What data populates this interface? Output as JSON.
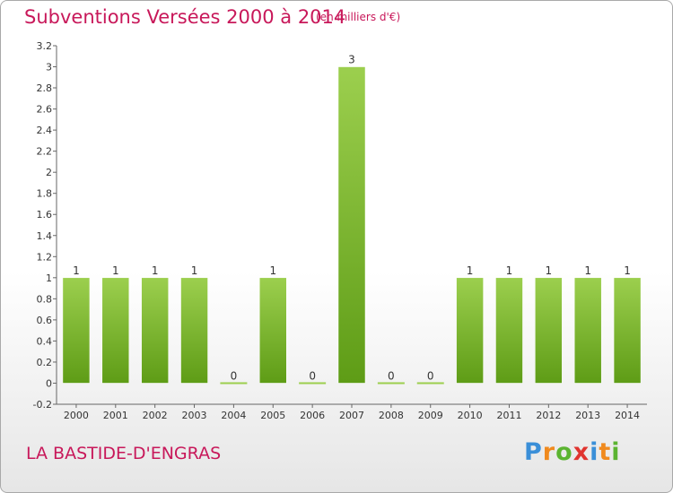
{
  "header": {
    "title": "Subventions Versées 2000 à 2014",
    "unit": "(en milliers d'€)"
  },
  "footer": {
    "commune": "LA BASTIDE-D'ENGRAS",
    "logo_letters": [
      "P",
      "r",
      "o",
      "x",
      "i",
      "t",
      "i"
    ],
    "logo_colors": [
      "#3a8fd8",
      "#f08a1e",
      "#5bb431",
      "#e0342f",
      "#3a8fd8",
      "#f08a1e",
      "#5bb431"
    ]
  },
  "chart_data": {
    "type": "bar",
    "title": "Subventions Versées 2000 à 2014",
    "xlabel": "",
    "ylabel": "",
    "categories": [
      "2000",
      "2001",
      "2002",
      "2003",
      "2004",
      "2005",
      "2006",
      "2007",
      "2008",
      "2009",
      "2010",
      "2011",
      "2012",
      "2013",
      "2014"
    ],
    "values": [
      1,
      1,
      1,
      1,
      0,
      1,
      0,
      3,
      0,
      0,
      1,
      1,
      1,
      1,
      1
    ],
    "data_labels": [
      "1",
      "1",
      "1",
      "1",
      "0",
      "1",
      "0",
      "3",
      "0",
      "0",
      "1",
      "1",
      "1",
      "1",
      "1"
    ],
    "ylim": [
      -0.2,
      3.2
    ],
    "yticks": [
      -0.2,
      0,
      0.2,
      0.4,
      0.6,
      0.8,
      1,
      1.2,
      1.4,
      1.6,
      1.8,
      2,
      2.2,
      2.4,
      2.6,
      2.8,
      3,
      3.2
    ],
    "ytick_labels": [
      "-0.2",
      "0",
      "0.2",
      "0.4",
      "0.6",
      "0.8",
      "1",
      "1.2",
      "1.4",
      "1.6",
      "1.8",
      "2",
      "2.2",
      "2.4",
      "2.6",
      "2.8",
      "3",
      "3.2"
    ],
    "grid": false,
    "bar_color_top": "#9ccf4e",
    "bar_color_bottom": "#5e9c16"
  }
}
